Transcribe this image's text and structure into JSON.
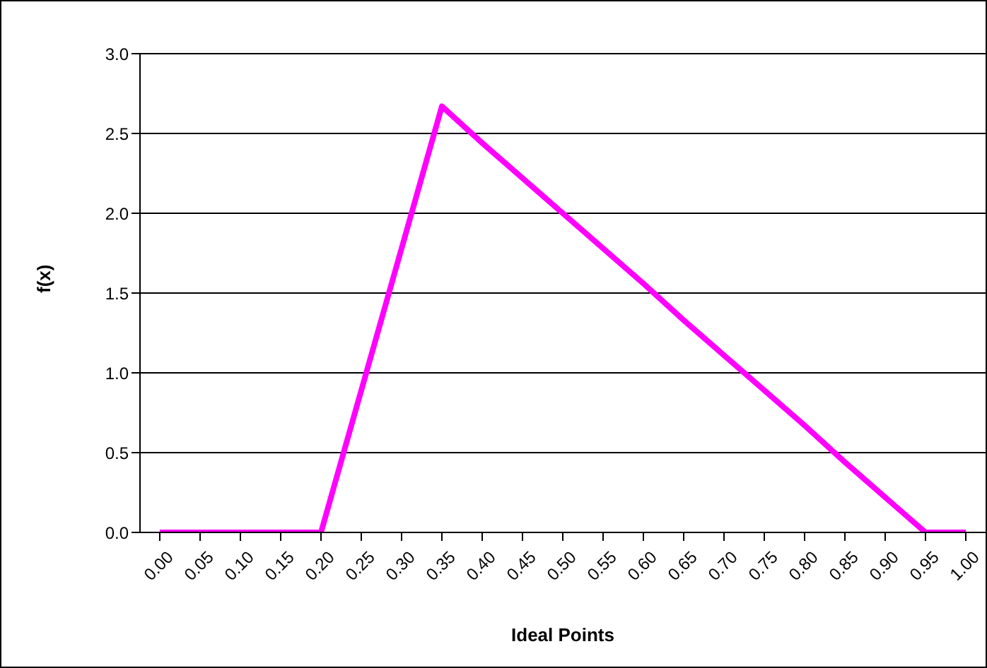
{
  "chart_data": {
    "type": "line",
    "xlabel": "Ideal Points",
    "ylabel": "f(x)",
    "categories": [
      "0.00",
      "0.05",
      "0.10",
      "0.15",
      "0.20",
      "0.25",
      "0.30",
      "0.35",
      "0.40",
      "0.45",
      "0.50",
      "0.55",
      "0.60",
      "0.65",
      "0.70",
      "0.75",
      "0.80",
      "0.85",
      "0.90",
      "0.95",
      "1.00"
    ],
    "values": [
      0,
      0,
      0,
      0,
      0,
      0.89,
      1.78,
      2.67,
      2.44,
      2.22,
      2.0,
      1.78,
      1.56,
      1.33,
      1.11,
      0.89,
      0.67,
      0.44,
      0.22,
      0,
      0
    ],
    "color": "#ff00ff",
    "ylim": [
      0,
      3
    ],
    "yticks": [
      {
        "value": 0,
        "label": "0.0"
      },
      {
        "value": 0.5,
        "label": "0.5"
      },
      {
        "value": 1,
        "label": "1.0"
      },
      {
        "value": 1.5,
        "label": "1.5"
      },
      {
        "value": 2,
        "label": "2.0"
      },
      {
        "value": 2.5,
        "label": "2.5"
      },
      {
        "value": 3,
        "label": "3.0"
      }
    ],
    "grid": "y",
    "marker": "none"
  }
}
